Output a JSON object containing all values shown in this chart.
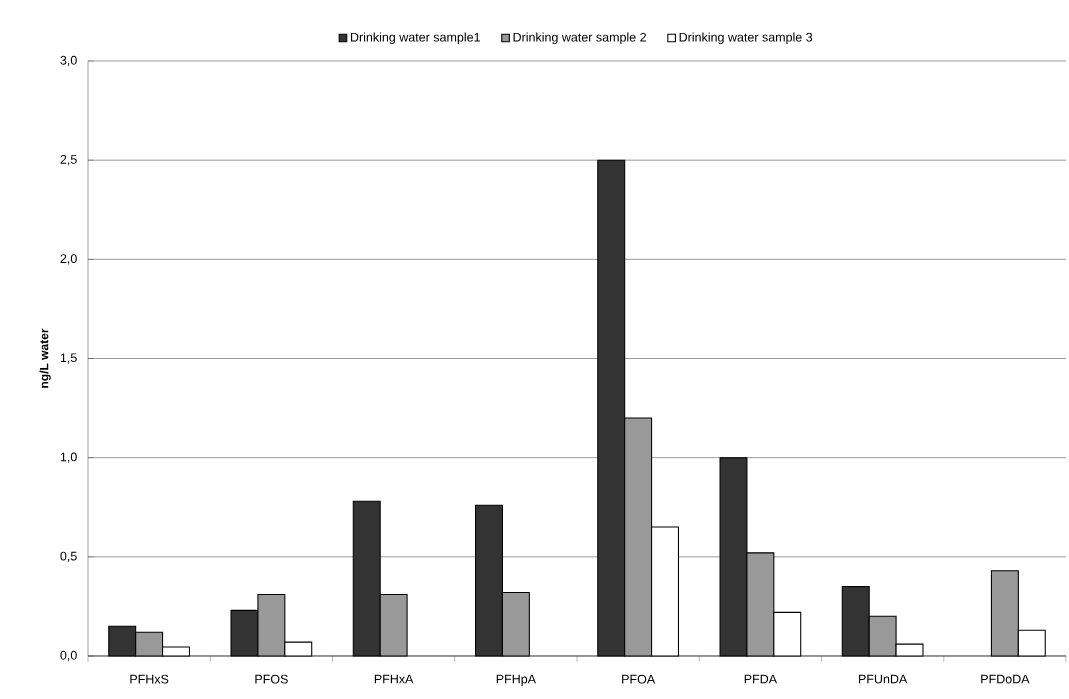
{
  "chart_data": {
    "type": "bar",
    "ylabel": "ng/L water",
    "categories": [
      "PFHxS",
      "PFOS",
      "PFHxA",
      "PFHpA",
      "PFOA",
      "PFDA",
      "PFUnDA",
      "PFDoDA"
    ],
    "series": [
      {
        "name": "Drinking water sample1",
        "color": "#333333",
        "values": [
          0.15,
          0.23,
          0.78,
          0.76,
          2.5,
          1.0,
          0.35,
          null
        ]
      },
      {
        "name": "Drinking water sample 2",
        "color": "#999999",
        "values": [
          0.12,
          0.31,
          0.31,
          0.32,
          1.2,
          0.52,
          0.2,
          0.43
        ]
      },
      {
        "name": "Drinking water sample 3",
        "color": "#ffffff",
        "values": [
          0.045,
          0.07,
          null,
          null,
          0.65,
          0.22,
          0.06,
          0.13
        ]
      }
    ],
    "ylim": [
      0,
      3
    ],
    "yticks": [
      {
        "value": 0,
        "label": "0,0"
      },
      {
        "value": 0.5,
        "label": "0,5"
      },
      {
        "value": 1,
        "label": "1,0"
      },
      {
        "value": 1.5,
        "label": "1,5"
      },
      {
        "value": 2,
        "label": "2,0"
      },
      {
        "value": 2.5,
        "label": "2,5"
      },
      {
        "value": 3,
        "label": "3,0"
      }
    ],
    "grid": "y",
    "legend": "top"
  }
}
